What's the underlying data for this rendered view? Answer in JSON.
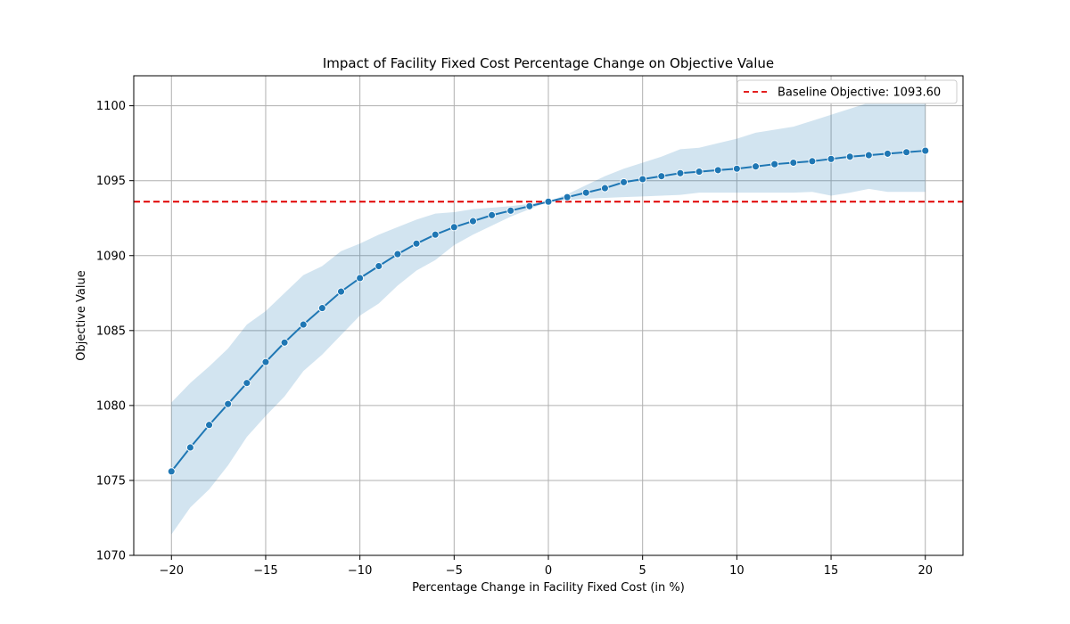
{
  "chart_data": {
    "type": "line",
    "title": "Impact of Facility Fixed Cost Percentage Change on Objective Value",
    "xlabel": "Percentage Change in Facility Fixed Cost (in %)",
    "ylabel": "Objective Value",
    "xlim": [
      -22,
      22
    ],
    "ylim": [
      1070,
      1102
    ],
    "x_ticks": [
      -20,
      -15,
      -10,
      -5,
      0,
      5,
      10,
      15,
      20
    ],
    "x_tick_labels": [
      "−20",
      "−15",
      "−10",
      "−5",
      "0",
      "5",
      "10",
      "15",
      "20"
    ],
    "y_ticks": [
      1070,
      1075,
      1080,
      1085,
      1090,
      1095,
      1100
    ],
    "y_tick_labels": [
      "1070",
      "1075",
      "1080",
      "1085",
      "1090",
      "1095",
      "1100"
    ],
    "grid": true,
    "legend_position": "top-right",
    "colors": {
      "line": "#1f77b4",
      "band": "#1f77b4",
      "baseline": "#e00000",
      "grid": "#b0b0b0"
    },
    "series": [
      {
        "x": [
          -20,
          -19,
          -18,
          -17,
          -16,
          -15,
          -14,
          -13,
          -12,
          -11,
          -10,
          -9,
          -8,
          -7,
          -6,
          -5,
          -4,
          -3,
          -2,
          -1,
          0,
          1,
          2,
          3,
          4,
          5,
          6,
          7,
          8,
          9,
          10,
          11,
          12,
          13,
          14,
          15,
          16,
          17,
          18,
          19,
          20
        ],
        "values": [
          1075.6,
          1077.2,
          1078.7,
          1080.1,
          1081.5,
          1082.9,
          1084.2,
          1085.4,
          1086.5,
          1087.6,
          1088.5,
          1089.3,
          1090.1,
          1090.8,
          1091.4,
          1091.9,
          1092.3,
          1092.7,
          1093.0,
          1093.3,
          1093.6,
          1093.9,
          1094.2,
          1094.5,
          1094.9,
          1095.1,
          1095.3,
          1095.5,
          1095.6,
          1095.7,
          1095.8,
          1095.95,
          1096.1,
          1096.2,
          1096.3,
          1096.45,
          1096.6,
          1096.7,
          1096.8,
          1096.9,
          1097.0
        ],
        "band_lower": [
          1071.4,
          1073.2,
          1074.4,
          1076.0,
          1077.9,
          1079.3,
          1080.6,
          1082.3,
          1083.4,
          1084.7,
          1086.0,
          1086.8,
          1088.0,
          1089.0,
          1089.7,
          1090.7,
          1091.4,
          1092.0,
          1092.6,
          1093.1,
          1093.6,
          1093.7,
          1093.8,
          1093.85,
          1093.9,
          1093.95,
          1094.0,
          1094.05,
          1094.2,
          1094.2,
          1094.2,
          1094.2,
          1094.2,
          1094.2,
          1094.25,
          1094.0,
          1094.2,
          1094.45,
          1094.25,
          1094.25,
          1094.25
        ],
        "band_upper": [
          1080.2,
          1081.5,
          1082.6,
          1083.8,
          1085.4,
          1086.3,
          1087.5,
          1088.7,
          1089.3,
          1090.3,
          1090.8,
          1091.4,
          1091.9,
          1092.4,
          1092.8,
          1092.9,
          1093.1,
          1093.2,
          1093.3,
          1093.45,
          1093.6,
          1094.1,
          1094.7,
          1095.3,
          1095.8,
          1096.2,
          1096.6,
          1097.1,
          1097.2,
          1097.5,
          1097.8,
          1098.2,
          1098.4,
          1098.6,
          1099.0,
          1099.4,
          1099.8,
          1100.2,
          1100.2,
          1100.2,
          1100.3
        ]
      }
    ],
    "baseline": {
      "value": 1093.6,
      "label": "Baseline Objective: 1093.60"
    }
  }
}
